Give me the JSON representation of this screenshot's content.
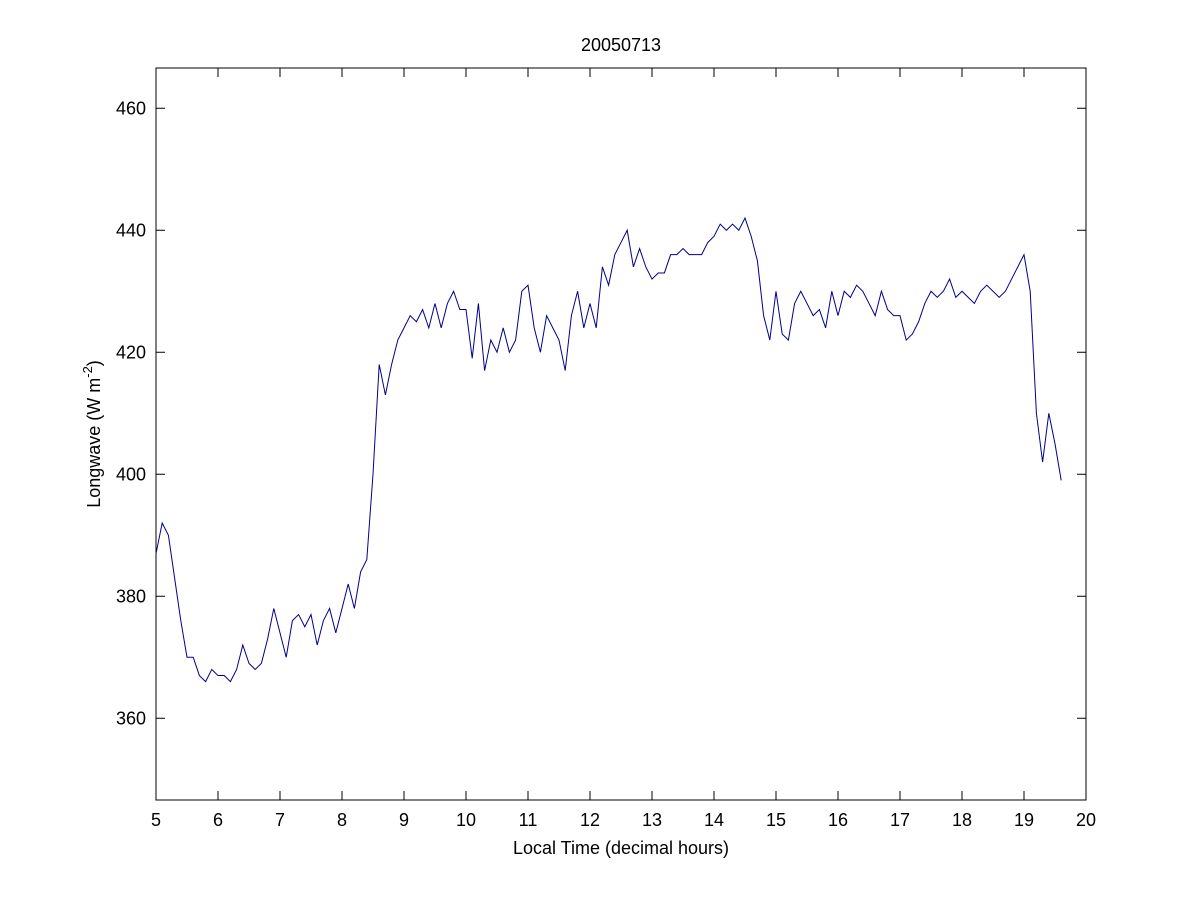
{
  "chart_data": {
    "type": "line",
    "title": "20050713",
    "xlabel": "Local Time (decimal hours)",
    "ylabel": {
      "text": "Longwave (W m",
      "superscript": "-2",
      "suffix": ")"
    },
    "color": "#00008b",
    "xlim": [
      5,
      20
    ],
    "xticks": [
      5,
      6,
      7,
      8,
      9,
      10,
      11,
      12,
      13,
      14,
      15,
      16,
      17,
      18,
      19,
      20
    ],
    "ylim": [
      346.6,
      466.6
    ],
    "yticks": [
      360,
      380,
      400,
      420,
      440,
      460
    ],
    "grid": false,
    "x": [
      5.0,
      5.1,
      5.2,
      5.3,
      5.4,
      5.5,
      5.6,
      5.7,
      5.8,
      5.9,
      6.0,
      6.1,
      6.2,
      6.3,
      6.4,
      6.5,
      6.6,
      6.7,
      6.8,
      6.9,
      7.0,
      7.1,
      7.2,
      7.3,
      7.4,
      7.5,
      7.6,
      7.7,
      7.8,
      7.9,
      8.0,
      8.1,
      8.2,
      8.3,
      8.4,
      8.5,
      8.6,
      8.7,
      8.8,
      8.9,
      9.0,
      9.1,
      9.2,
      9.3,
      9.4,
      9.5,
      9.6,
      9.7,
      9.8,
      9.9,
      10.0,
      10.1,
      10.2,
      10.3,
      10.4,
      10.5,
      10.6,
      10.7,
      10.8,
      10.9,
      11.0,
      11.1,
      11.2,
      11.3,
      11.4,
      11.5,
      11.6,
      11.7,
      11.8,
      11.9,
      12.0,
      12.1,
      12.2,
      12.3,
      12.4,
      12.5,
      12.6,
      12.7,
      12.8,
      12.9,
      13.0,
      13.1,
      13.2,
      13.3,
      13.4,
      13.5,
      13.6,
      13.7,
      13.8,
      13.9,
      14.0,
      14.1,
      14.2,
      14.3,
      14.4,
      14.5,
      14.6,
      14.7,
      14.8,
      14.9,
      15.0,
      15.1,
      15.2,
      15.3,
      15.4,
      15.5,
      15.6,
      15.7,
      15.8,
      15.9,
      16.0,
      16.1,
      16.2,
      16.3,
      16.4,
      16.5,
      16.6,
      16.7,
      16.8,
      16.9,
      17.0,
      17.1,
      17.2,
      17.3,
      17.4,
      17.5,
      17.6,
      17.7,
      17.8,
      17.9,
      18.0,
      18.1,
      18.2,
      18.3,
      18.4,
      18.5,
      18.6,
      18.7,
      18.8,
      18.9,
      19.0,
      19.1,
      19.2,
      19.3,
      19.4,
      19.5,
      19.6
    ],
    "values": [
      387,
      392,
      390,
      383,
      376,
      370,
      370,
      367,
      366,
      368,
      367,
      367,
      366,
      368,
      372,
      369,
      368,
      369,
      373,
      378,
      374,
      370,
      376,
      377,
      375,
      377,
      372,
      376,
      378,
      374,
      378,
      382,
      378,
      384,
      386,
      400,
      418,
      413,
      418,
      422,
      424,
      426,
      425,
      427,
      424,
      428,
      424,
      428,
      430,
      427,
      427,
      419,
      428,
      417,
      422,
      420,
      424,
      420,
      422,
      430,
      431,
      424,
      420,
      426,
      424,
      422,
      417,
      426,
      430,
      424,
      428,
      424,
      434,
      431,
      436,
      438,
      440,
      434,
      437,
      434,
      432,
      433,
      433,
      436,
      436,
      437,
      436,
      436,
      436,
      438,
      439,
      441,
      440,
      441,
      440,
      442,
      439,
      435,
      426,
      422,
      430,
      423,
      422,
      428,
      430,
      428,
      426,
      427,
      424,
      430,
      426,
      430,
      429,
      431,
      430,
      428,
      426,
      430,
      427,
      426,
      426,
      422,
      423,
      425,
      428,
      430,
      429,
      430,
      432,
      429,
      430,
      429,
      428,
      430,
      431,
      430,
      429,
      430,
      432,
      434,
      436,
      430,
      410,
      402,
      410,
      405,
      399
    ]
  }
}
